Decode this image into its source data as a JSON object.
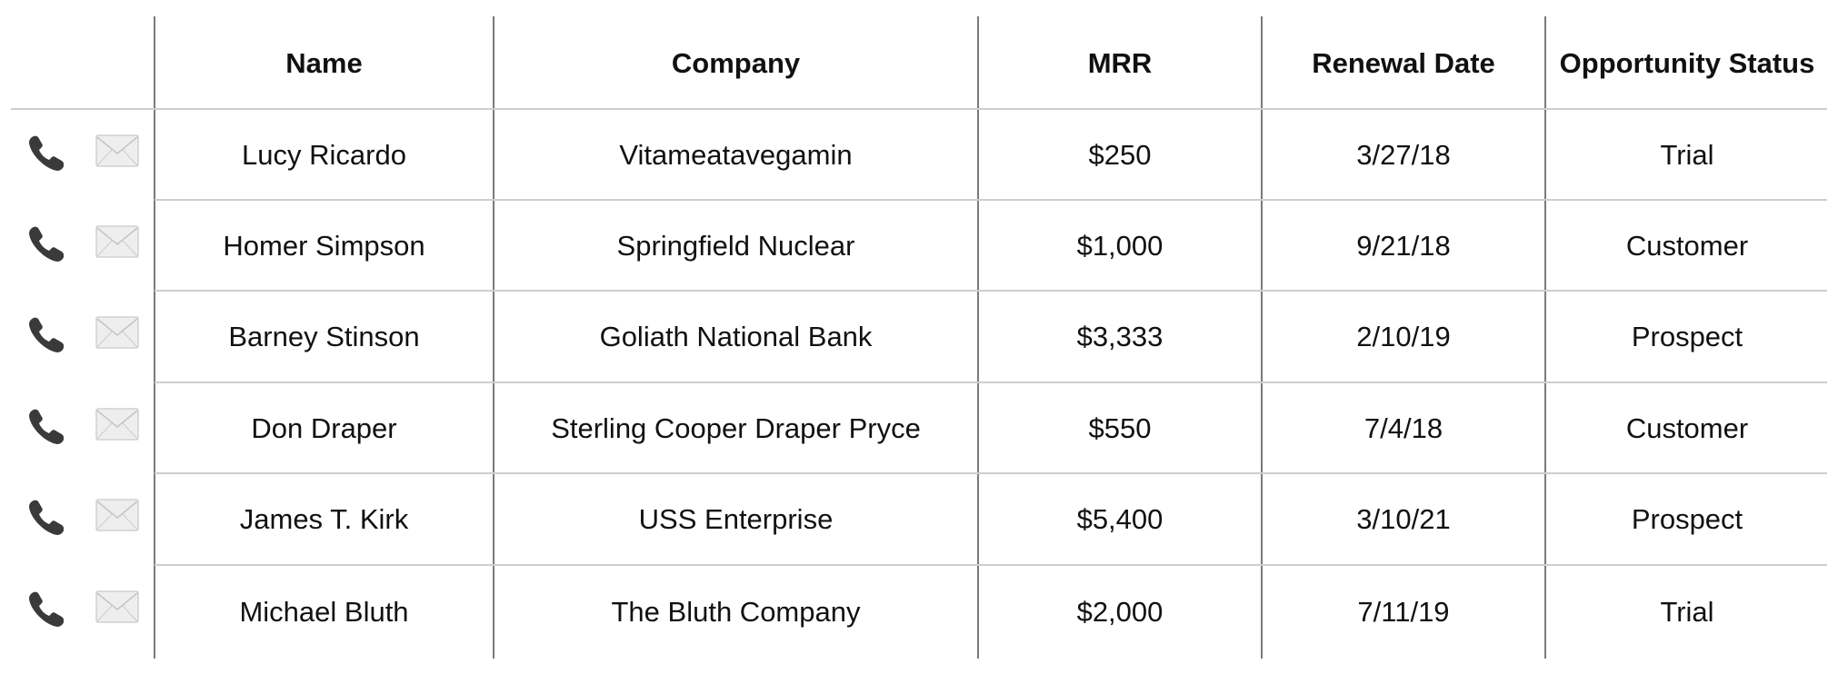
{
  "table": {
    "columns": [
      "Name",
      "Company",
      "MRR",
      "Renewal Date",
      "Opportunity Status"
    ],
    "rows": [
      {
        "name": "Lucy Ricardo",
        "company": "Vitameatavegamin",
        "mrr": "$250",
        "renewal": "3/27/18",
        "status": "Trial"
      },
      {
        "name": "Homer Simpson",
        "company": "Springfield Nuclear",
        "mrr": "$1,000",
        "renewal": "9/21/18",
        "status": "Customer"
      },
      {
        "name": "Barney Stinson",
        "company": "Goliath National Bank",
        "mrr": "$3,333",
        "renewal": "2/10/19",
        "status": "Prospect"
      },
      {
        "name": "Don Draper",
        "company": "Sterling Cooper Draper Pryce",
        "mrr": "$550",
        "renewal": "7/4/18",
        "status": "Customer"
      },
      {
        "name": "James T. Kirk",
        "company": "USS Enterprise",
        "mrr": "$5,400",
        "renewal": "3/10/21",
        "status": "Prospect"
      },
      {
        "name": "Michael Bluth",
        "company": "The Bluth Company",
        "mrr": "$2,000",
        "renewal": "7/11/19",
        "status": "Trial"
      }
    ],
    "row_icons": [
      "phone-icon",
      "envelope-icon"
    ]
  },
  "colors": {
    "grid_vertical": "#7a7a7a",
    "grid_horizontal": "#cdcdcd",
    "phone_icon": "#3a3a3a",
    "envelope_icon": "#e6e6e6"
  }
}
